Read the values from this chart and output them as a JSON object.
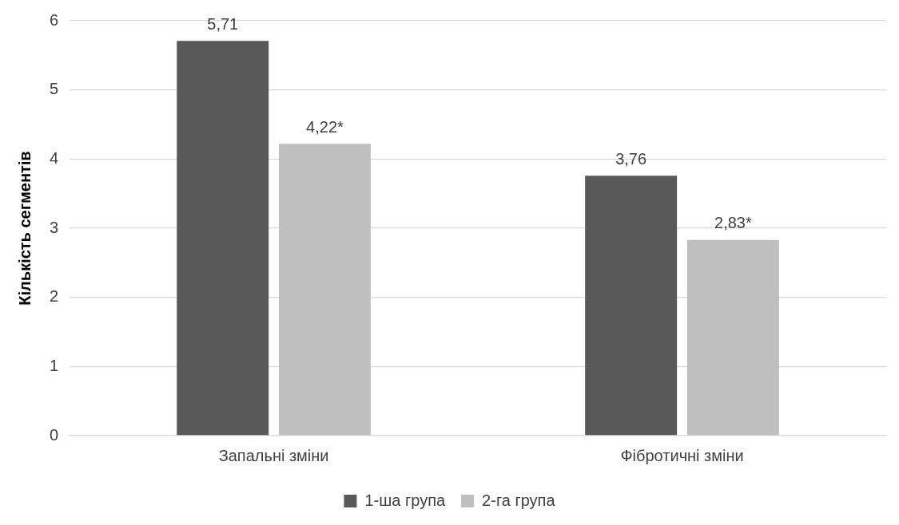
{
  "chart_data": {
    "type": "bar",
    "ylabel": "Кількість сегментів",
    "categories": [
      "Запальні зміни",
      "Фібротичні зміни"
    ],
    "series": [
      {
        "name": "1-ша група",
        "color": "#595959",
        "values": [
          5.71,
          3.76
        ],
        "value_labels": [
          "5,71",
          "3,76"
        ]
      },
      {
        "name": "2-га група",
        "color": "#bfbfbf",
        "values": [
          4.22,
          2.83
        ],
        "value_labels": [
          "4,22*",
          "2,83*"
        ]
      }
    ],
    "ylim": [
      0,
      6
    ],
    "yticks": [
      0,
      1,
      2,
      3,
      4,
      5,
      6
    ],
    "grid": "y",
    "legend": "bottom"
  }
}
